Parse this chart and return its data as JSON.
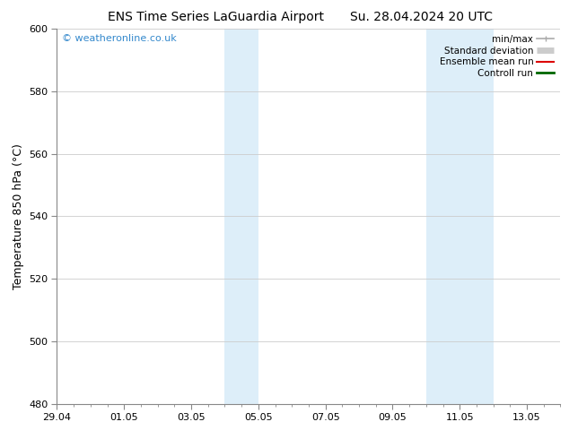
{
  "title": "ENS Time Series LaGuardia Airport",
  "title2": "Su. 28.04.2024 20 UTC",
  "ylabel": "Temperature 850 hPa (°C)",
  "ylim": [
    480,
    600
  ],
  "yticks": [
    480,
    500,
    520,
    540,
    560,
    580,
    600
  ],
  "xlim": [
    0,
    15
  ],
  "xtick_labels": [
    "29.04",
    "01.05",
    "03.05",
    "05.05",
    "07.05",
    "09.05",
    "11.05",
    "13.05"
  ],
  "xtick_positions": [
    0,
    2,
    4,
    6,
    8,
    10,
    12,
    14
  ],
  "shading_bands": [
    {
      "x_start": 5.0,
      "x_end": 5.5,
      "color": "#ddeef9"
    },
    {
      "x_start": 5.5,
      "x_end": 6.0,
      "color": "#ddeef9"
    },
    {
      "x_start": 11.0,
      "x_end": 11.5,
      "color": "#ddeef9"
    },
    {
      "x_start": 11.5,
      "x_end": 12.5,
      "color": "#ddeef9"
    },
    {
      "x_start": 12.5,
      "x_end": 13.0,
      "color": "#ddeef9"
    }
  ],
  "watermark": "© weatheronline.co.uk",
  "watermark_color": "#3388cc",
  "legend_items": [
    {
      "label": "min/max",
      "color": "#aaaaaa",
      "lw": 1.2,
      "style": "minmax"
    },
    {
      "label": "Standard deviation",
      "color": "#cccccc",
      "lw": 5,
      "style": "box"
    },
    {
      "label": "Ensemble mean run",
      "color": "#dd0000",
      "lw": 1.5,
      "style": "line"
    },
    {
      "label": "Controll run",
      "color": "#006600",
      "lw": 2.0,
      "style": "line"
    }
  ],
  "background_color": "#ffffff",
  "plot_bg_color": "#ffffff",
  "grid_color": "#cccccc",
  "title_fontsize": 10,
  "tick_fontsize": 8,
  "ylabel_fontsize": 9,
  "legend_fontsize": 7.5
}
